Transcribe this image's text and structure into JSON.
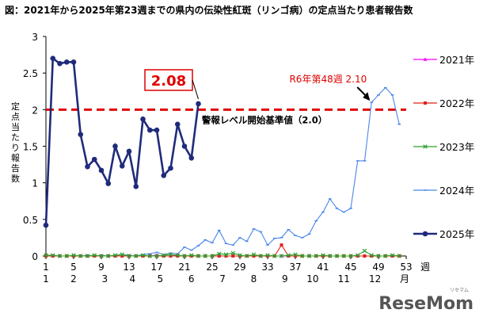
{
  "title": "図：2021年から2025年第23週までの県内の伝染性紅斑（リンゴ病）の定点当たり患者報告数",
  "watermark": "ReseMom",
  "watermark_sub": "リセマム",
  "colors": {
    "y2021": "#ff00ff",
    "y2022": "#e0221a",
    "y2023": "#2ea02e",
    "y2024": "#4a86e8",
    "y2025": "#1f2b7a",
    "threshold": "#e00000"
  },
  "chart_data": {
    "type": "line",
    "title": "",
    "xlabel": "週",
    "ylabel": "定点当たり報告数",
    "xlim": [
      1,
      53
    ],
    "ylim": [
      0,
      3
    ],
    "yticks": [
      0,
      0.5,
      1,
      1.5,
      2,
      2.5,
      3
    ],
    "ytick_labels": [
      "0",
      "0.5",
      "1",
      "1.5",
      "2",
      "2.5",
      "3"
    ],
    "week_ticks": [
      1,
      5,
      9,
      13,
      17,
      21,
      25,
      29,
      33,
      37,
      41,
      45,
      49,
      53
    ],
    "month_labels": [
      {
        "label": "1",
        "week": 1
      },
      {
        "label": "2",
        "week": 5
      },
      {
        "label": "3",
        "week": 9.5
      },
      {
        "label": "4",
        "week": 13.5
      },
      {
        "label": "5",
        "week": 17.5
      },
      {
        "label": "6",
        "week": 22
      },
      {
        "label": "7",
        "week": 26.5
      },
      {
        "label": "8",
        "week": 31
      },
      {
        "label": "9",
        "week": 35.5
      },
      {
        "label": "10",
        "week": 39.5
      },
      {
        "label": "11",
        "week": 44
      },
      {
        "label": "12",
        "week": 48.5
      }
    ],
    "month_suffix": "月",
    "grid": false,
    "legend_position": "right",
    "series": [
      {
        "name": "2021年",
        "key": "y2021",
        "marker": "triangle",
        "values": [
          0,
          0,
          0,
          0,
          0,
          0,
          0,
          0,
          0,
          0,
          0,
          0,
          0,
          0,
          0,
          0,
          0.01,
          0,
          0,
          0.01,
          0,
          0,
          0,
          0,
          0,
          0,
          0,
          0,
          0,
          0,
          0,
          0,
          0,
          0,
          0,
          0,
          0,
          0,
          0,
          0,
          0,
          0,
          0,
          0,
          0,
          0,
          0,
          0,
          0,
          0,
          0,
          0
        ]
      },
      {
        "name": "2022年",
        "key": "y2022",
        "marker": "square",
        "values": [
          0,
          0,
          0,
          0,
          0,
          0,
          0,
          0,
          0,
          0,
          0,
          0,
          0,
          0,
          0,
          0,
          0,
          0,
          0,
          0,
          0,
          0,
          0,
          0,
          0,
          0,
          0,
          0,
          0,
          0,
          0,
          0,
          0,
          0,
          0.15,
          0,
          0,
          0,
          0,
          0,
          0,
          0,
          0,
          0,
          0,
          0,
          0,
          0,
          0,
          0,
          0,
          0
        ]
      },
      {
        "name": "2023年",
        "key": "y2023",
        "marker": "x",
        "values": [
          0.01,
          0.01,
          0,
          0,
          0.01,
          0,
          0,
          0.01,
          0,
          0,
          0.01,
          0.02,
          0,
          0,
          0.01,
          0,
          0,
          0.01,
          0.02,
          0.01,
          0,
          0.01,
          0,
          0,
          0,
          0.03,
          0.02,
          0.04,
          0.01,
          0,
          0.02,
          0,
          0.01,
          0,
          0,
          0.01,
          0.02,
          0,
          0,
          0,
          0.01,
          0,
          0,
          0,
          0,
          0.01,
          0.07,
          0.01,
          0,
          0,
          0.01,
          0
        ]
      },
      {
        "name": "2024年",
        "key": "y2024",
        "marker": "dash",
        "values": [
          0,
          0,
          0,
          0,
          0,
          0,
          0.01,
          0,
          0.01,
          0,
          0,
          0.02,
          0.01,
          0,
          0.02,
          0.03,
          0.05,
          0.02,
          0.04,
          0.03,
          0.12,
          0.08,
          0.14,
          0.22,
          0.18,
          0.35,
          0.17,
          0.15,
          0.25,
          0.2,
          0.37,
          0.33,
          0.15,
          0.24,
          0.25,
          0.36,
          0.28,
          0.25,
          0.3,
          0.48,
          0.6,
          0.78,
          0.65,
          0.6,
          0.65,
          1.3,
          1.3,
          2.1,
          2.2,
          2.3,
          2.2,
          1.8
        ]
      },
      {
        "name": "2025年",
        "key": "y2025",
        "marker": "circle",
        "values": [
          0.42,
          2.7,
          2.63,
          2.65,
          2.65,
          1.66,
          1.22,
          1.32,
          1.17,
          0.99,
          1.5,
          1.23,
          1.43,
          0.95,
          1.87,
          1.72,
          1.72,
          1.1,
          1.2,
          1.8,
          1.5,
          1.34,
          2.08
        ]
      }
    ],
    "threshold": {
      "value": 2.0,
      "label": "警報レベル開始基準値（2.0）"
    },
    "annotations": [
      {
        "text": "2.08",
        "week": 23,
        "value": 2.08,
        "style": "boxed"
      },
      {
        "text": "R6年第48週 2.10",
        "week": 48,
        "value": 2.1,
        "style": "arrow"
      }
    ]
  }
}
